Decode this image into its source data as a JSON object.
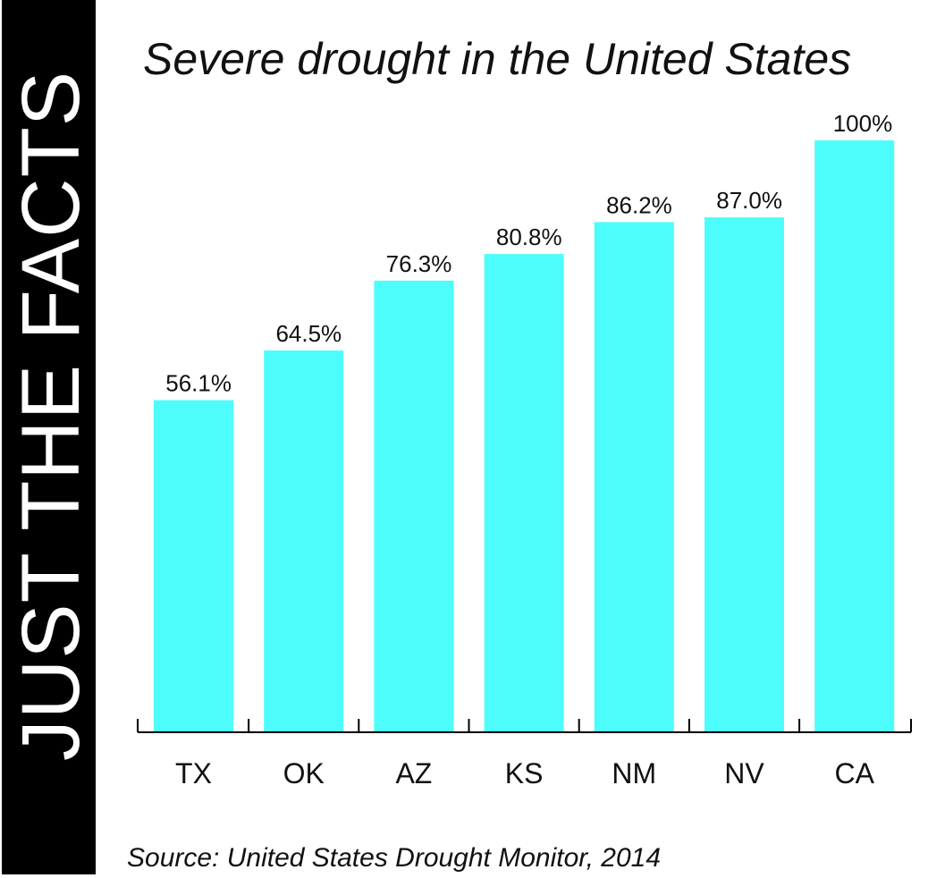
{
  "side_banner": {
    "text_light": "JUST THE ",
    "text_bold": "FACTS"
  },
  "title": "Severe drought in the United States",
  "source": "Source: United States Drought Monitor, 2014",
  "colors": {
    "bar": "#4dfdfb",
    "banner": "#000000",
    "text": "#111111"
  },
  "chart_data": {
    "type": "bar",
    "title": "Severe drought in the United States",
    "categories": [
      "TX",
      "OK",
      "AZ",
      "KS",
      "NM",
      "NV",
      "CA"
    ],
    "values": [
      56.1,
      64.5,
      76.3,
      80.8,
      86.2,
      87.0,
      100
    ],
    "data_labels": [
      "56.1%",
      "64.5%",
      "76.3%",
      "80.8%",
      "86.2%",
      "87.0%",
      "100%"
    ],
    "xlabel": "",
    "ylabel": "",
    "ylim": [
      0,
      100
    ],
    "grid": false,
    "legend": "none"
  }
}
